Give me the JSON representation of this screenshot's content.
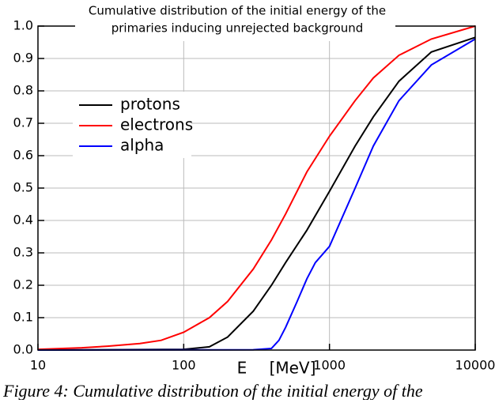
{
  "chart_data": {
    "type": "line",
    "title": [
      "Cumulative distribution of the initial energy of the",
      "primaries inducing unrejected background"
    ],
    "x_label": "E",
    "x_unit": "[MeV]",
    "xscale": "log",
    "xlim": [
      10,
      10000
    ],
    "xticks": [
      10,
      100,
      1000,
      10000
    ],
    "ylim": [
      0,
      1
    ],
    "yticks": [
      {
        "value": 0,
        "label": "0.0"
      },
      0.1,
      0.2,
      0.3,
      0.4,
      0.5,
      0.6,
      0.7,
      0.8,
      0.9,
      {
        "value": 1,
        "label": "1.0"
      }
    ],
    "grid": true,
    "legend": "upper left",
    "series": [
      {
        "name": "protons",
        "color": "#000000",
        "x": [
          10,
          100,
          150,
          200,
          300,
          400,
          500,
          700,
          1000,
          1500,
          2000,
          3000,
          5000,
          10000
        ],
        "values": [
          0,
          0.002,
          0.01,
          0.04,
          0.12,
          0.2,
          0.27,
          0.37,
          0.49,
          0.63,
          0.72,
          0.83,
          0.92,
          0.965
        ]
      },
      {
        "name": "electrons",
        "color": "#ff0000",
        "x": [
          10,
          20,
          30,
          50,
          70,
          100,
          150,
          200,
          300,
          400,
          500,
          700,
          1000,
          1500,
          2000,
          3000,
          5000,
          10000
        ],
        "values": [
          0.002,
          0.007,
          0.012,
          0.02,
          0.03,
          0.055,
          0.1,
          0.15,
          0.25,
          0.34,
          0.42,
          0.55,
          0.66,
          0.77,
          0.84,
          0.91,
          0.96,
          1.0
        ]
      },
      {
        "name": "alpha",
        "color": "#0000ff",
        "x": [
          10,
          300,
          400,
          450,
          500,
          600,
          700,
          800,
          1000,
          1500,
          2000,
          3000,
          5000,
          10000
        ],
        "values": [
          0,
          0.001,
          0.005,
          0.03,
          0.07,
          0.15,
          0.22,
          0.27,
          0.32,
          0.5,
          0.63,
          0.77,
          0.88,
          0.96
        ]
      }
    ]
  },
  "caption": "Figure 4: Cumulative distribution of the initial energy of the"
}
